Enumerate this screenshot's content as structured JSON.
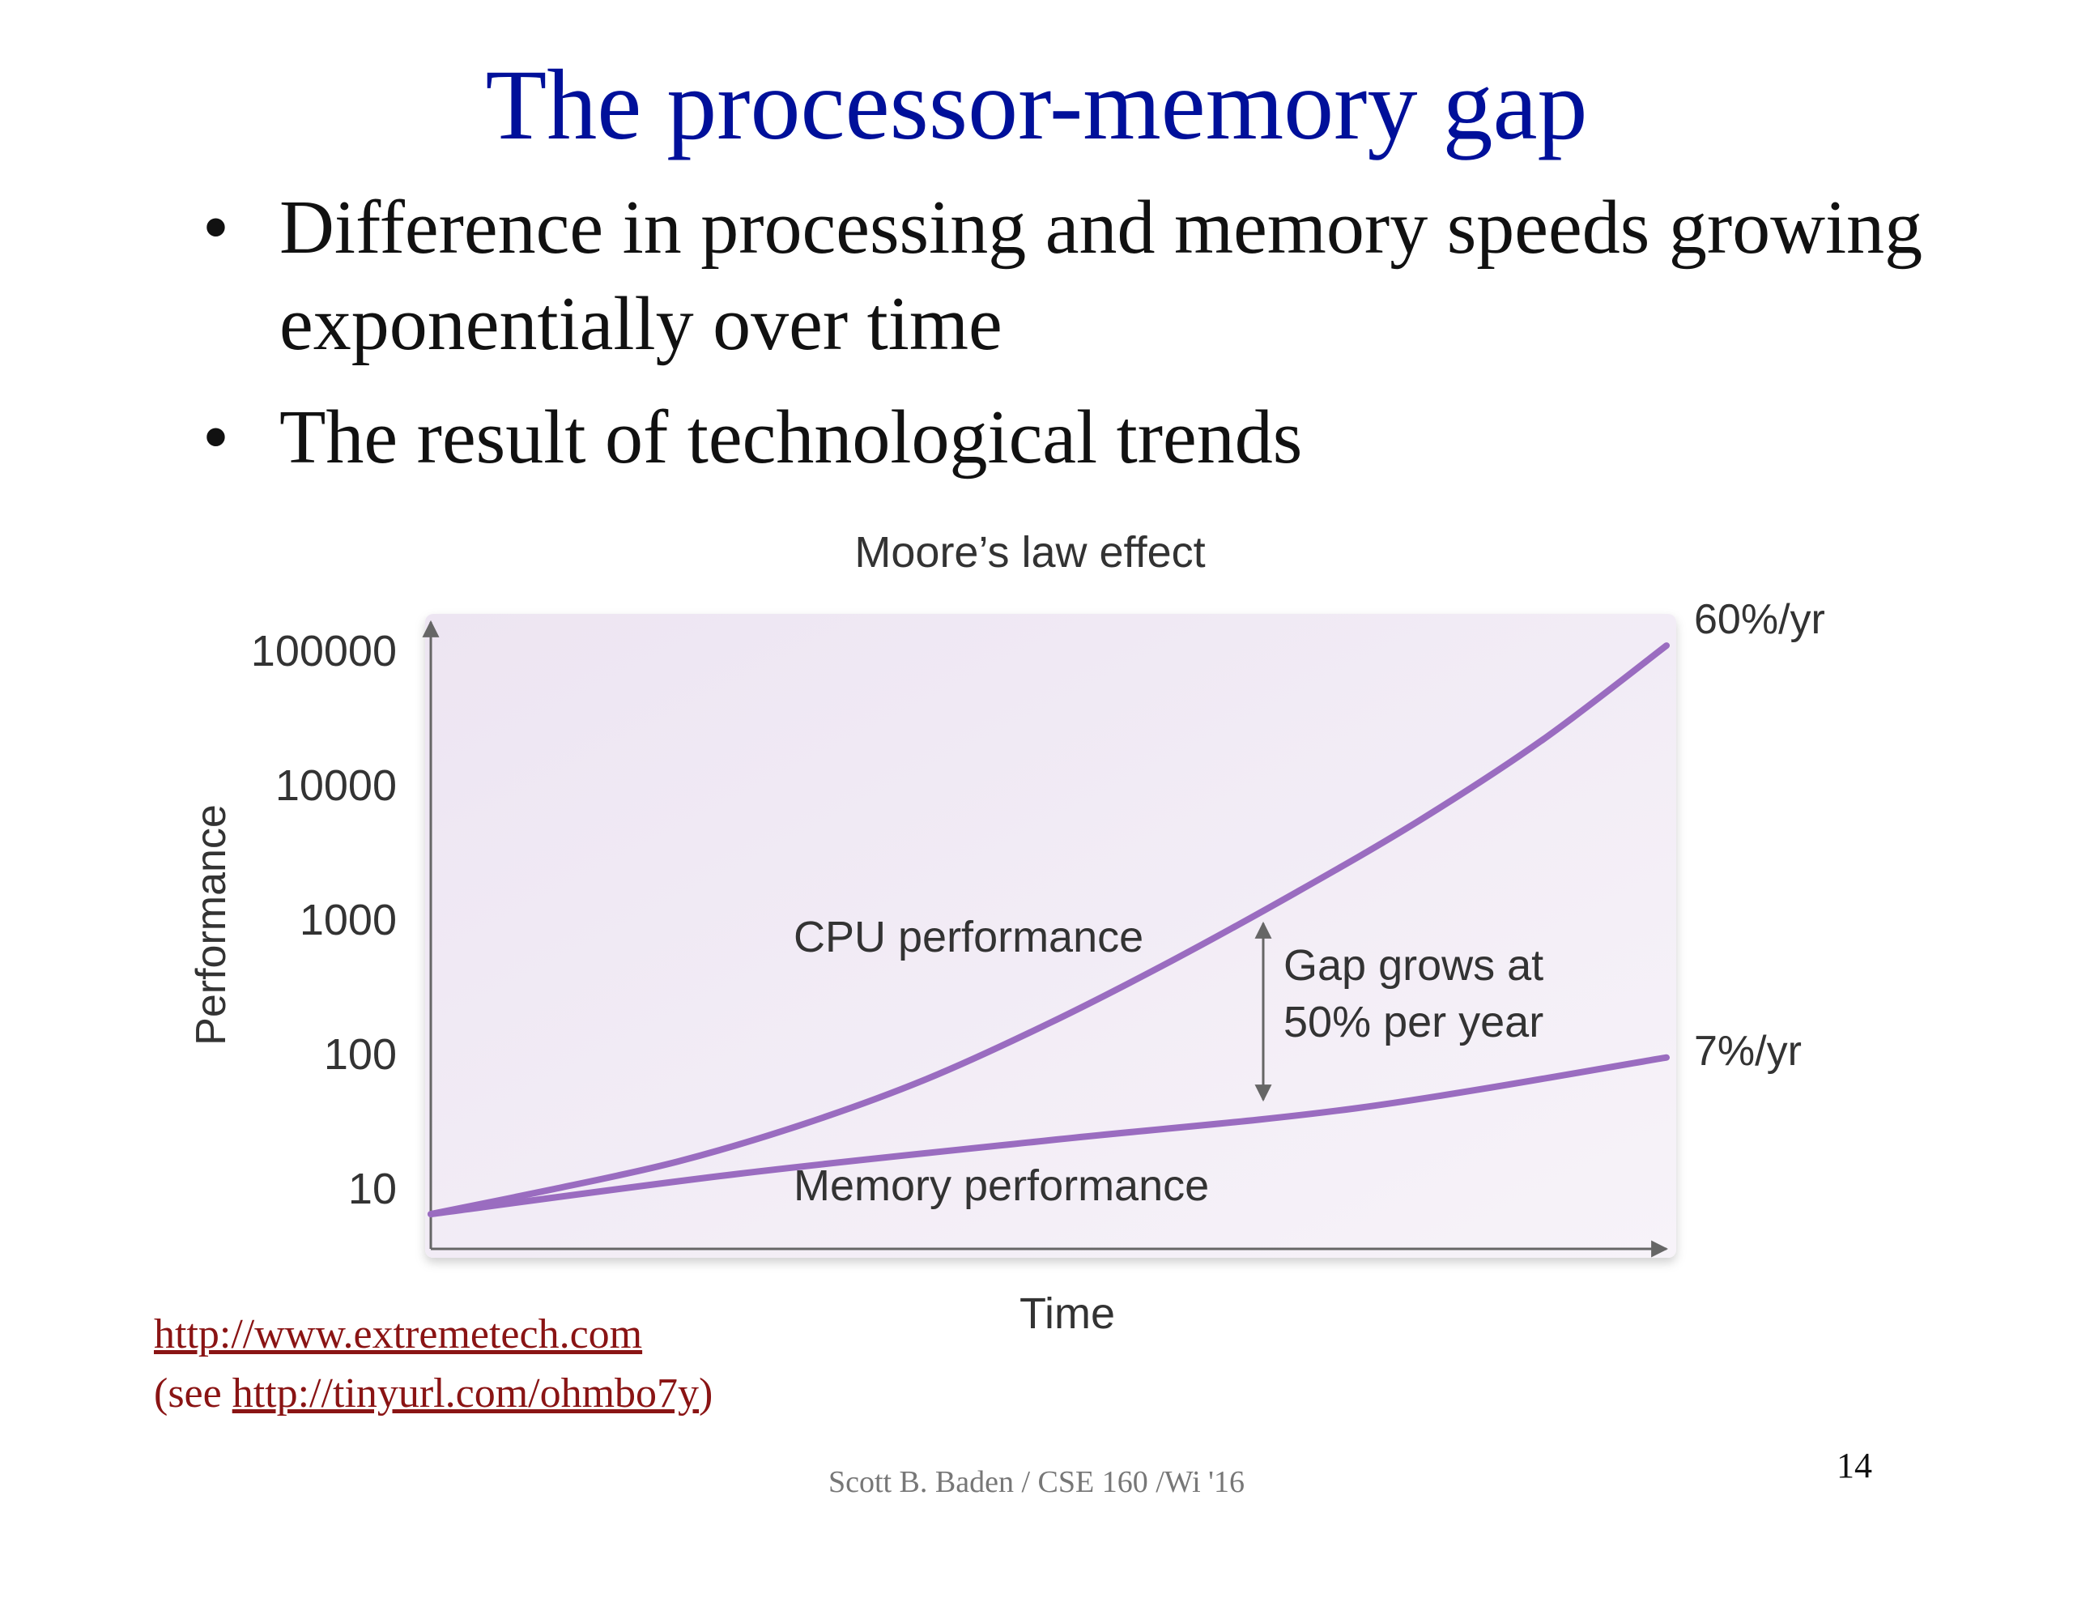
{
  "slide": {
    "title": "The processor-memory gap",
    "bullets": [
      "Difference in processing and memory speeds growing exponentially over time",
      "The result of technological trends"
    ],
    "source_link": "http://www.extremetech.com",
    "source_see_prefix": "(see ",
    "source_see_link": "http://tinyurl.com/ohmbo7y",
    "source_see_suffix": ")",
    "footer": "Scott B. Baden / CSE 160 /Wi '16",
    "page_number": "14"
  },
  "chart_data": {
    "type": "line",
    "title": "Moore’s law effect",
    "xlabel": "Time",
    "ylabel": "Performance",
    "y_scale": "log",
    "y_ticks": [
      10,
      100,
      1000,
      10000,
      100000
    ],
    "y_tick_labels": [
      "10",
      "100",
      "1000",
      "10000",
      "100000"
    ],
    "ylim": [
      3,
      150000
    ],
    "grid": false,
    "legend": "none",
    "series": [
      {
        "name": "CPU performance",
        "growth_label": "60%/yr",
        "color": "#9a6cc0",
        "points": [
          [
            0.0,
            6.5
          ],
          [
            0.1,
            10
          ],
          [
            0.2,
            16
          ],
          [
            0.3,
            30
          ],
          [
            0.4,
            65
          ],
          [
            0.5,
            170
          ],
          [
            0.6,
            500
          ],
          [
            0.7,
            1600
          ],
          [
            0.8,
            5500
          ],
          [
            0.9,
            22000
          ],
          [
            1.0,
            110000
          ]
        ]
      },
      {
        "name": "Memory performance",
        "growth_label": "7%/yr",
        "color": "#9a6cc0",
        "points": [
          [
            0.0,
            6.5
          ],
          [
            0.25,
            13
          ],
          [
            0.5,
            23
          ],
          [
            0.75,
            40
          ],
          [
            1.0,
            95
          ]
        ]
      }
    ],
    "annotation": {
      "text_line1": "Gap grows at",
      "text_line2": "50% per year"
    },
    "colors": {
      "plot_bg_top": "#ede5f2",
      "plot_bg_bottom": "#f7f3f9",
      "line": "#9a6cc0",
      "axis": "#666666",
      "text": "#333333"
    }
  }
}
